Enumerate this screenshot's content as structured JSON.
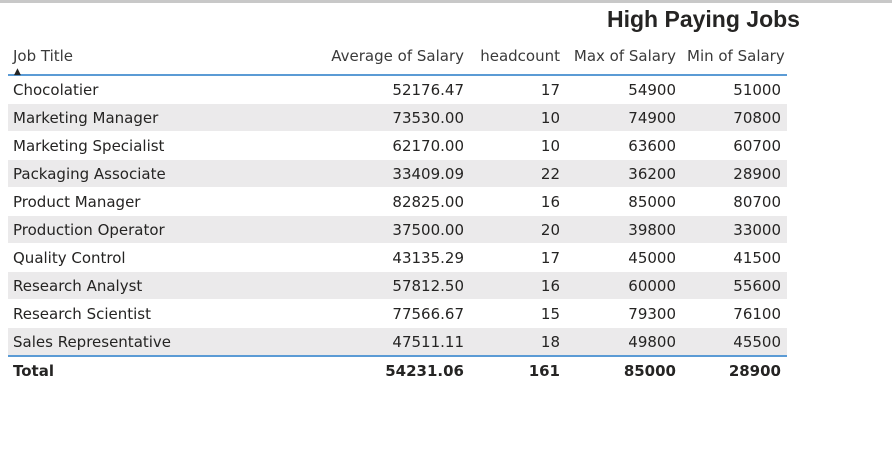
{
  "title": "High Paying Jobs",
  "columns": [
    "Job Title",
    "Average of Salary",
    "headcount",
    "Max of Salary",
    "Min of Salary"
  ],
  "rows": [
    [
      "Chocolatier",
      "52176.47",
      "17",
      "54900",
      "51000"
    ],
    [
      "Marketing Manager",
      "73530.00",
      "10",
      "74900",
      "70800"
    ],
    [
      "Marketing Specialist",
      "62170.00",
      "10",
      "63600",
      "60700"
    ],
    [
      "Packaging Associate",
      "33409.09",
      "22",
      "36200",
      "28900"
    ],
    [
      "Product Manager",
      "82825.00",
      "16",
      "85000",
      "80700"
    ],
    [
      "Production Operator",
      "37500.00",
      "20",
      "39800",
      "33000"
    ],
    [
      "Quality Control",
      "43135.29",
      "17",
      "45000",
      "41500"
    ],
    [
      "Research Analyst",
      "57812.50",
      "16",
      "60000",
      "55600"
    ],
    [
      "Research Scientist",
      "77566.67",
      "15",
      "79300",
      "76100"
    ],
    [
      "Sales Representative",
      "47511.11",
      "18",
      "49800",
      "45500"
    ]
  ],
  "total": [
    "Total",
    "54231.06",
    "161",
    "85000",
    "28900"
  ],
  "sort": {
    "column": "Job Title",
    "direction": "ascending",
    "indicator": "▲"
  },
  "colors": {
    "accent": "#5b9bd5",
    "alt_row": "#ebeaeb",
    "text": "#252423"
  }
}
